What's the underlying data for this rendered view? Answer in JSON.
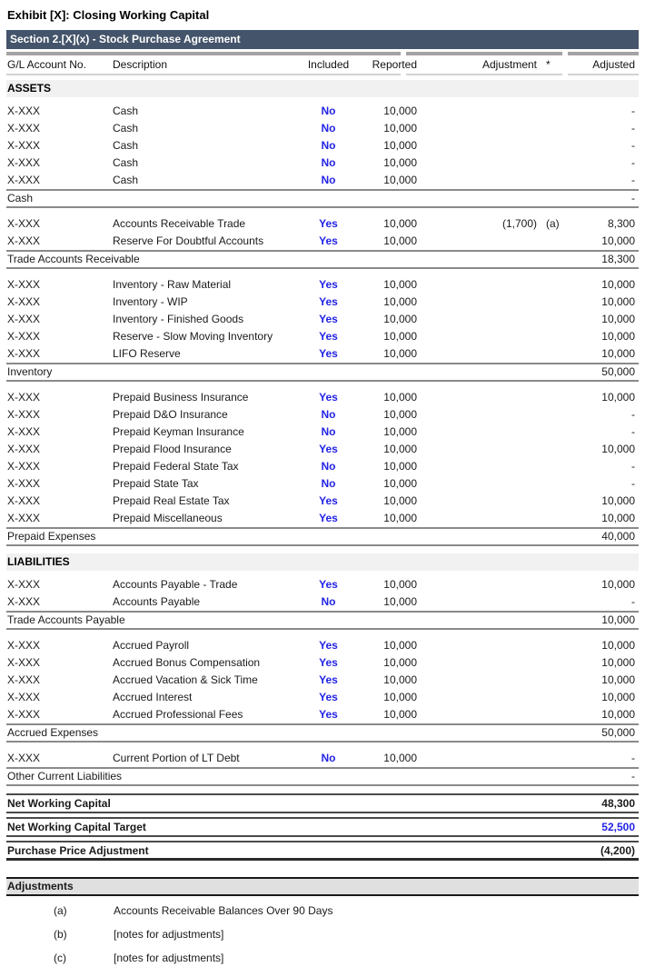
{
  "title": "Exhibit [X]: Closing Working Capital",
  "section_bar": "Section 2.[X](x) - Stock Purchase Agreement",
  "columns": {
    "gl": "G/L Account No.",
    "description": "Description",
    "included": "Included",
    "reported": "Reported",
    "adjustment": "Adjustment",
    "footnote_star": "*",
    "adjusted": "Adjusted"
  },
  "assets_label": "ASSETS",
  "liabilities_label": "LIABILITIES",
  "colors": {
    "section_bar_bg": "#44546A",
    "section_bar_text": "#FFFFFF",
    "accent_blue": "#2323E6",
    "section_heading_bg": "#F1F1F1",
    "adjustments_bar_bg": "#E0E0E0",
    "subtotal_rule": "#8A8A8A",
    "total_rule": "#4A4A4A"
  },
  "groups": [
    {
      "area": "assets",
      "rows": [
        {
          "gl": "X-XXX",
          "desc": "Cash",
          "included": "No",
          "reported": "10,000",
          "adjustment": "",
          "note": "",
          "adjusted": "-"
        },
        {
          "gl": "X-XXX",
          "desc": "Cash",
          "included": "No",
          "reported": "10,000",
          "adjustment": "",
          "note": "",
          "adjusted": "-"
        },
        {
          "gl": "X-XXX",
          "desc": "Cash",
          "included": "No",
          "reported": "10,000",
          "adjustment": "",
          "note": "",
          "adjusted": "-"
        },
        {
          "gl": "X-XXX",
          "desc": "Cash",
          "included": "No",
          "reported": "10,000",
          "adjustment": "",
          "note": "",
          "adjusted": "-"
        },
        {
          "gl": "X-XXX",
          "desc": "Cash",
          "included": "No",
          "reported": "10,000",
          "adjustment": "",
          "note": "",
          "adjusted": "-"
        }
      ],
      "subtotal": {
        "label": "Cash",
        "value": "-"
      }
    },
    {
      "area": "assets",
      "rows": [
        {
          "gl": "X-XXX",
          "desc": "Accounts Receivable Trade",
          "included": "Yes",
          "reported": "10,000",
          "adjustment": "(1,700)",
          "note": "(a)",
          "adjusted": "8,300"
        },
        {
          "gl": "X-XXX",
          "desc": "Reserve For Doubtful Accounts",
          "included": "Yes",
          "reported": "10,000",
          "adjustment": "",
          "note": "",
          "adjusted": "10,000"
        }
      ],
      "subtotal": {
        "label": "Trade Accounts Receivable",
        "value": "18,300"
      }
    },
    {
      "area": "assets",
      "rows": [
        {
          "gl": "X-XXX",
          "desc": "Inventory - Raw Material",
          "included": "Yes",
          "reported": "10,000",
          "adjustment": "",
          "note": "",
          "adjusted": "10,000"
        },
        {
          "gl": "X-XXX",
          "desc": "Inventory - WIP",
          "included": "Yes",
          "reported": "10,000",
          "adjustment": "",
          "note": "",
          "adjusted": "10,000"
        },
        {
          "gl": "X-XXX",
          "desc": "Inventory - Finished Goods",
          "included": "Yes",
          "reported": "10,000",
          "adjustment": "",
          "note": "",
          "adjusted": "10,000"
        },
        {
          "gl": "X-XXX",
          "desc": "Reserve - Slow Moving Inventory",
          "included": "Yes",
          "reported": "10,000",
          "adjustment": "",
          "note": "",
          "adjusted": "10,000"
        },
        {
          "gl": "X-XXX",
          "desc": "LIFO Reserve",
          "included": "Yes",
          "reported": "10,000",
          "adjustment": "",
          "note": "",
          "adjusted": "10,000"
        }
      ],
      "subtotal": {
        "label": "Inventory",
        "value": "50,000"
      }
    },
    {
      "area": "assets",
      "rows": [
        {
          "gl": "X-XXX",
          "desc": "Prepaid Business Insurance",
          "included": "Yes",
          "reported": "10,000",
          "adjustment": "",
          "note": "",
          "adjusted": "10,000"
        },
        {
          "gl": "X-XXX",
          "desc": "Prepaid D&O Insurance",
          "included": "No",
          "reported": "10,000",
          "adjustment": "",
          "note": "",
          "adjusted": "-"
        },
        {
          "gl": "X-XXX",
          "desc": "Prepaid Keyman Insurance",
          "included": "No",
          "reported": "10,000",
          "adjustment": "",
          "note": "",
          "adjusted": "-"
        },
        {
          "gl": "X-XXX",
          "desc": "Prepaid Flood Insurance",
          "included": "Yes",
          "reported": "10,000",
          "adjustment": "",
          "note": "",
          "adjusted": "10,000"
        },
        {
          "gl": "X-XXX",
          "desc": "Prepaid Federal State Tax",
          "included": "No",
          "reported": "10,000",
          "adjustment": "",
          "note": "",
          "adjusted": "-"
        },
        {
          "gl": "X-XXX",
          "desc": "Prepaid State Tax",
          "included": "No",
          "reported": "10,000",
          "adjustment": "",
          "note": "",
          "adjusted": "-"
        },
        {
          "gl": "X-XXX",
          "desc": "Prepaid Real Estate Tax",
          "included": "Yes",
          "reported": "10,000",
          "adjustment": "",
          "note": "",
          "adjusted": "10,000"
        },
        {
          "gl": "X-XXX",
          "desc": "Prepaid Miscellaneous",
          "included": "Yes",
          "reported": "10,000",
          "adjustment": "",
          "note": "",
          "adjusted": "10,000"
        }
      ],
      "subtotal": {
        "label": "Prepaid Expenses",
        "value": "40,000"
      }
    },
    {
      "area": "liabilities",
      "rows": [
        {
          "gl": "X-XXX",
          "desc": "Accounts Payable - Trade",
          "included": "Yes",
          "reported": "10,000",
          "adjustment": "",
          "note": "",
          "adjusted": "10,000"
        },
        {
          "gl": "X-XXX",
          "desc": "Accounts Payable",
          "included": "No",
          "reported": "10,000",
          "adjustment": "",
          "note": "",
          "adjusted": "-"
        }
      ],
      "subtotal": {
        "label": "Trade Accounts Payable",
        "value": "10,000"
      }
    },
    {
      "area": "liabilities",
      "rows": [
        {
          "gl": "X-XXX",
          "desc": "Accrued Payroll",
          "included": "Yes",
          "reported": "10,000",
          "adjustment": "",
          "note": "",
          "adjusted": "10,000"
        },
        {
          "gl": "X-XXX",
          "desc": "Accrued Bonus Compensation",
          "included": "Yes",
          "reported": "10,000",
          "adjustment": "",
          "note": "",
          "adjusted": "10,000"
        },
        {
          "gl": "X-XXX",
          "desc": "Accrued Vacation & Sick Time",
          "included": "Yes",
          "reported": "10,000",
          "adjustment": "",
          "note": "",
          "adjusted": "10,000"
        },
        {
          "gl": "X-XXX",
          "desc": "Accrued Interest",
          "included": "Yes",
          "reported": "10,000",
          "adjustment": "",
          "note": "",
          "adjusted": "10,000"
        },
        {
          "gl": "X-XXX",
          "desc": "Accrued Professional Fees",
          "included": "Yes",
          "reported": "10,000",
          "adjustment": "",
          "note": "",
          "adjusted": "10,000"
        }
      ],
      "subtotal": {
        "label": "Accrued Expenses",
        "value": "50,000"
      }
    },
    {
      "area": "liabilities",
      "rows": [
        {
          "gl": "X-XXX",
          "desc": "Current Portion of LT Debt",
          "included": "No",
          "reported": "10,000",
          "adjustment": "",
          "note": "",
          "adjusted": "-"
        }
      ],
      "subtotal": {
        "label": "Other Current Liabilities",
        "value": "-"
      }
    }
  ],
  "totals": [
    {
      "label": "Net Working Capital",
      "value": "48,300"
    },
    {
      "label": "Net Working Capital Target",
      "value": "52,500"
    },
    {
      "label": "Purchase Price Adjustment",
      "value": "(4,200)"
    }
  ],
  "adjustments": {
    "heading": "Adjustments",
    "notes": [
      {
        "ref": "(a)",
        "text": "Accounts Receivable Balances Over 90 Days"
      },
      {
        "ref": "(b)",
        "text": "[notes for adjustments]"
      },
      {
        "ref": "(c)",
        "text": "[notes for adjustments]"
      }
    ]
  }
}
